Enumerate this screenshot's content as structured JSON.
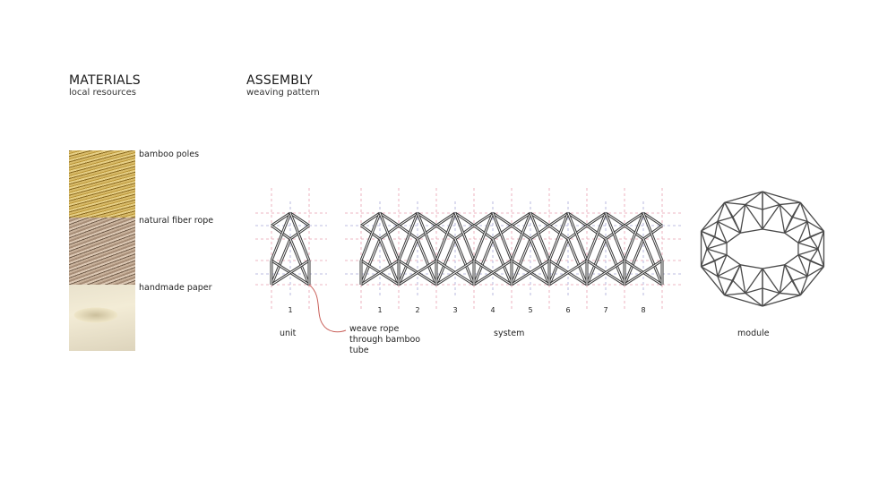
{
  "materials": {
    "title": "MATERIALS",
    "subtitle": "local resources",
    "items": [
      {
        "label": "bamboo poles"
      },
      {
        "label": "natural fiber rope"
      },
      {
        "label": "handmade paper"
      }
    ]
  },
  "assembly": {
    "title": "ASSEMBLY",
    "subtitle": "weaving pattern",
    "unit": {
      "label": "unit",
      "numbers": [
        "1"
      ]
    },
    "annotation": [
      "weave rope",
      "through bamboo",
      "tube"
    ],
    "system": {
      "label": "system",
      "numbers": [
        "1",
        "2",
        "3",
        "4",
        "5",
        "6",
        "7",
        "8"
      ]
    },
    "module": {
      "label": "module"
    }
  },
  "colors": {
    "bar": "#3a3a3a",
    "grid_red": "#e8a0b0",
    "grid_blue": "#a8a8d8",
    "rope_line": "#c9605a"
  }
}
